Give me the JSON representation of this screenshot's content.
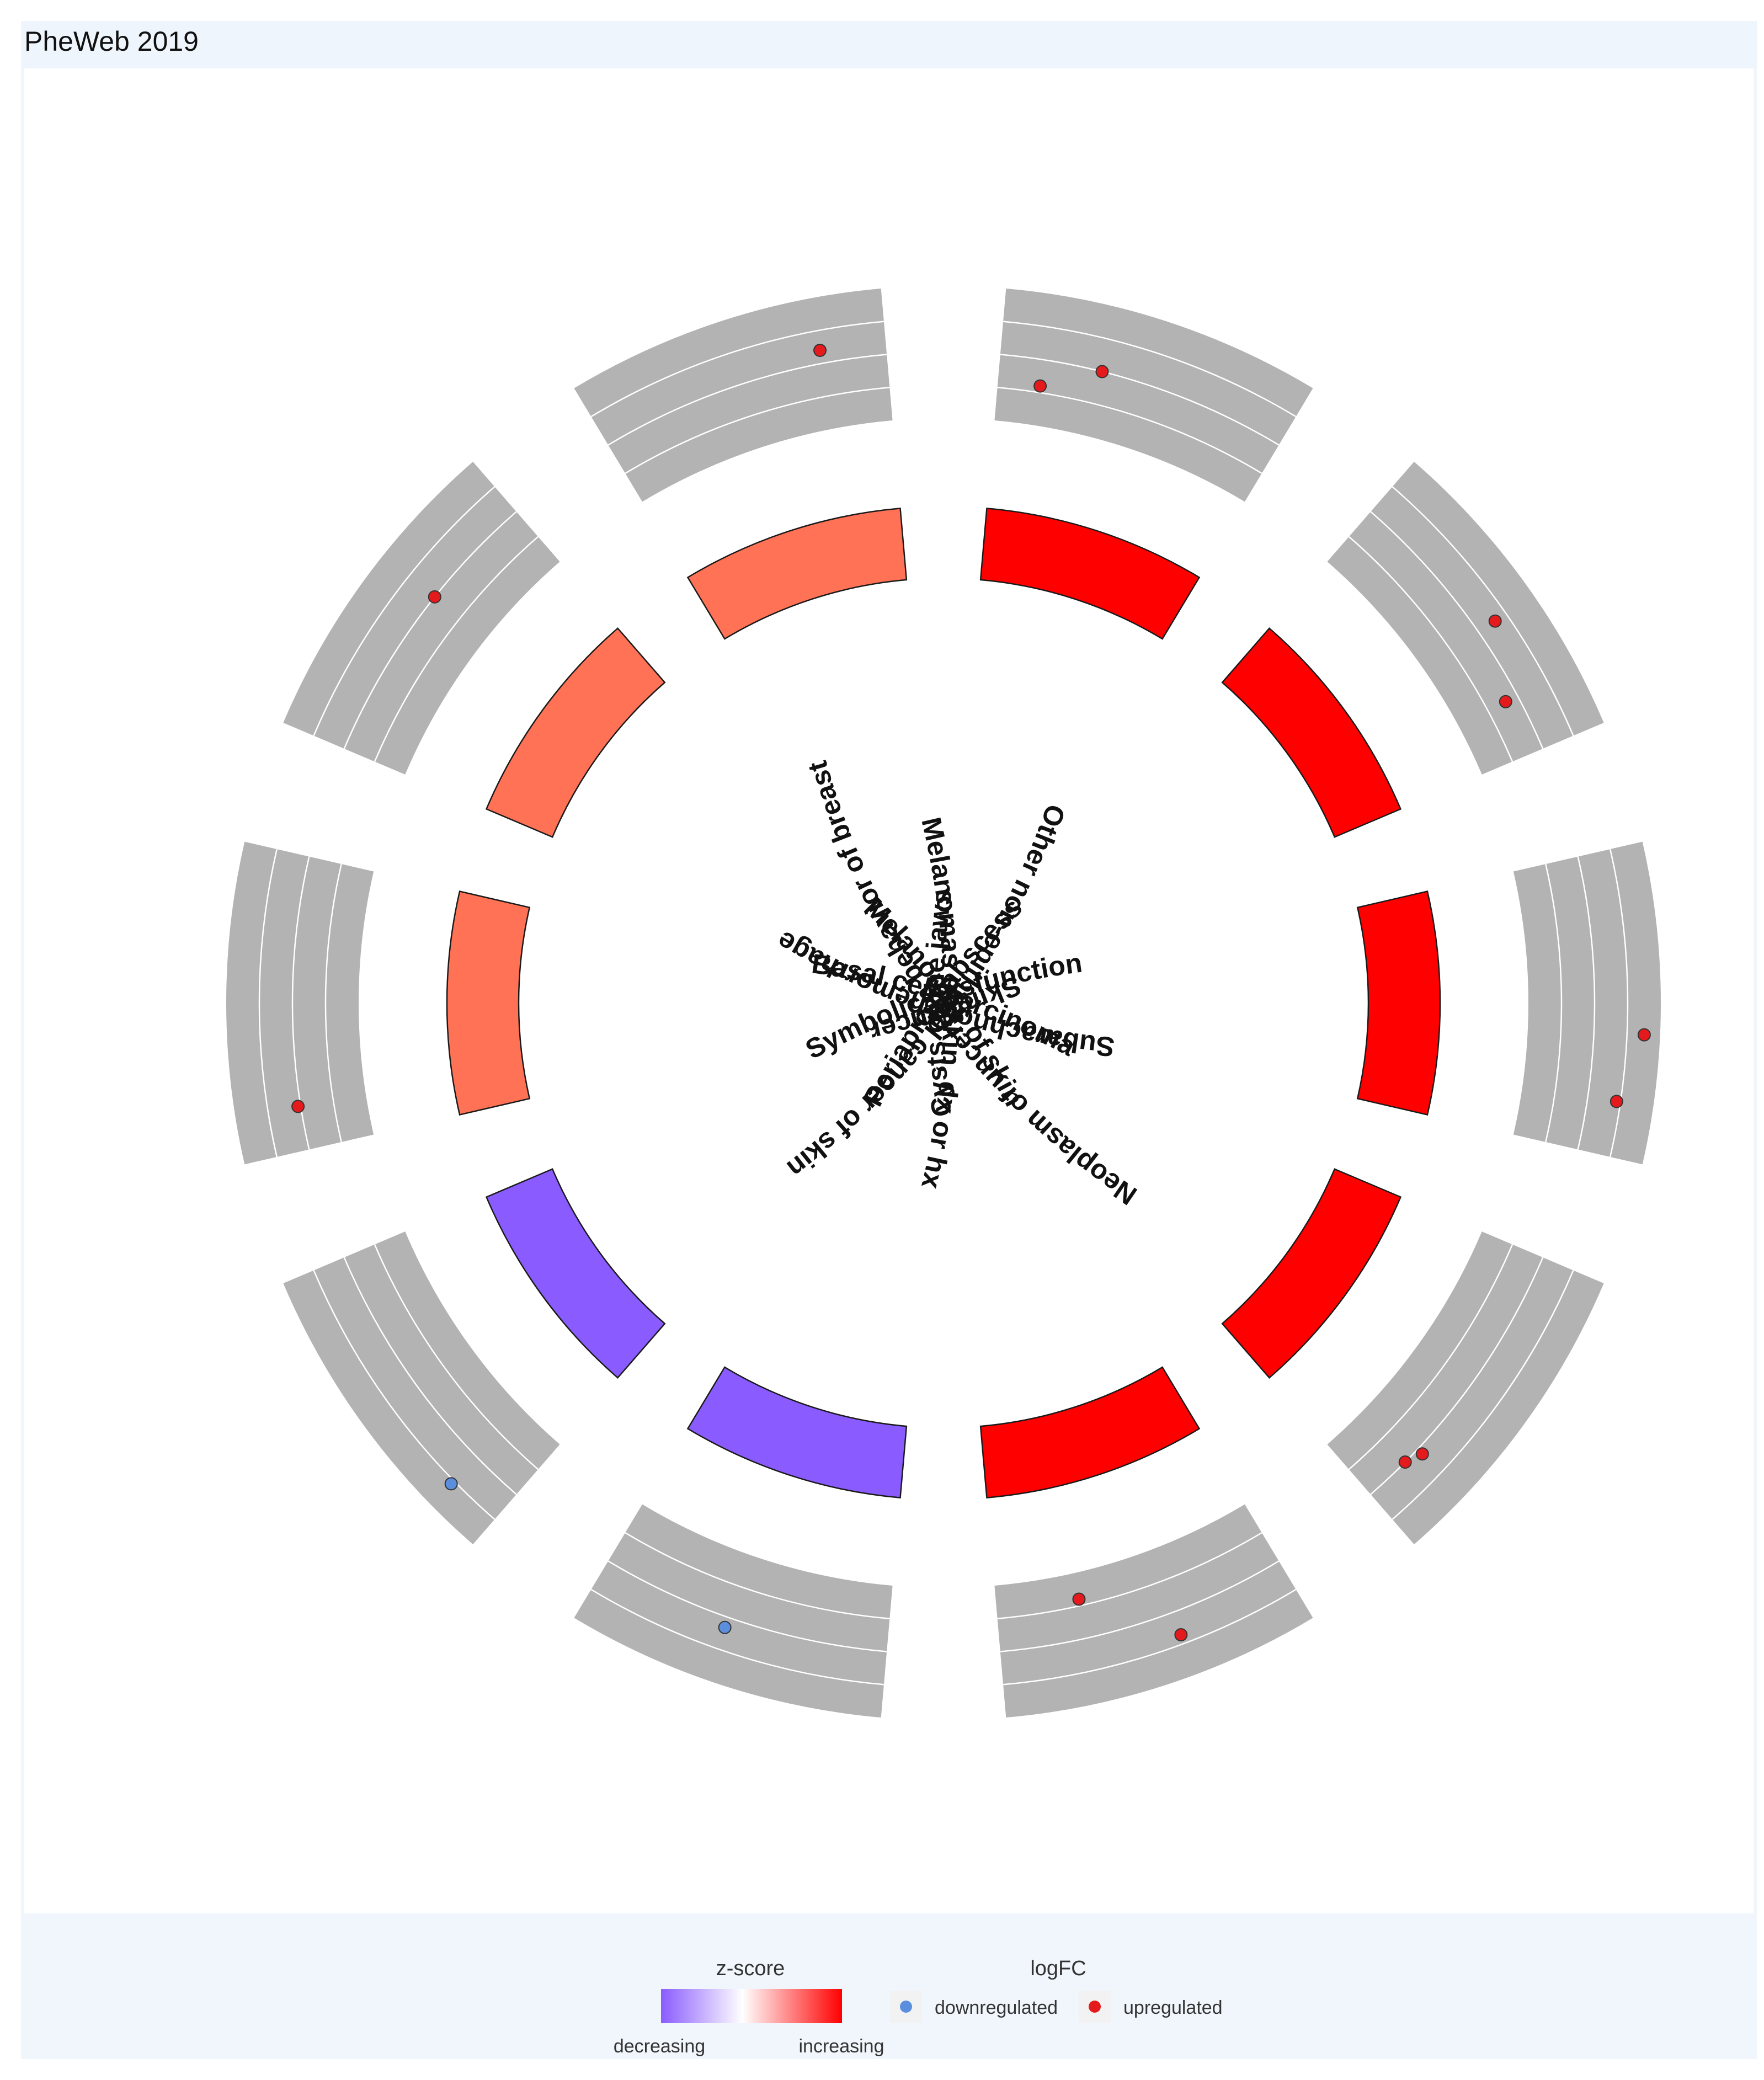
{
  "page": {
    "title": "PheWeb 2019"
  },
  "chart_data": {
    "type": "circular-bar",
    "colors": {
      "increasing": "#ff0000",
      "mid": "#ff7256",
      "decreasing": "#8a5cff",
      "track": "#b3b3b3",
      "upregulated": "#e41a1c",
      "downregulated": "#5b8fdd"
    },
    "categories": [
      {
        "label": "Basal cell carcinoma",
        "zscore": 4,
        "points": [
          {
            "logfc": 0.5,
            "position": 0.35,
            "regulation": "upregulated"
          },
          {
            "logfc": 0.3,
            "position": 0.15,
            "regulation": "upregulated"
          }
        ]
      },
      {
        "label": "Melanomas of skin",
        "zscore": 4,
        "points": [
          {
            "logfc": 0.65,
            "position": 0.55,
            "regulation": "upregulated"
          },
          {
            "logfc": 0.4,
            "position": 0.8,
            "regulation": "upregulated"
          }
        ]
      },
      {
        "label": "Melanomas of skin, dx or hx",
        "zscore": 4,
        "points": [
          {
            "logfc": 0.88,
            "position": 0.6,
            "regulation": "upregulated"
          },
          {
            "logfc": 0.72,
            "position": 0.82,
            "regulation": "upregulated"
          }
        ]
      },
      {
        "label": "Other non-epithelial cancer of skin",
        "zscore": 4,
        "points": [
          {
            "logfc": 0.55,
            "position": 0.78,
            "regulation": "upregulated"
          },
          {
            "logfc": 0.5,
            "position": 0.84,
            "regulation": "upregulated"
          }
        ]
      },
      {
        "label": "Skin cancer",
        "zscore": 4,
        "points": [
          {
            "logfc": 0.68,
            "position": 0.4,
            "regulation": "upregulated"
          },
          {
            "logfc": 0.2,
            "position": 0.7,
            "regulation": "upregulated"
          }
        ]
      },
      {
        "label": "Subarachnoid hemorrhage",
        "zscore": -3,
        "points": [
          {
            "logfc": 0.58,
            "position": 0.55,
            "regulation": "downregulated"
          }
        ]
      },
      {
        "label": "Neoplasm of uncertain behavior of breast",
        "zscore": -3,
        "points": [
          {
            "logfc": 0.78,
            "position": 0.18,
            "regulation": "downregulated"
          }
        ]
      },
      {
        "label": "Cysts of the jaws",
        "zscore": 2,
        "points": [
          {
            "logfc": 0.52,
            "position": 0.15,
            "regulation": "upregulated"
          }
        ]
      },
      {
        "label": "Periapical abscess",
        "zscore": 2,
        "points": [
          {
            "logfc": 0.5,
            "position": 0.6,
            "regulation": "upregulated"
          }
        ]
      },
      {
        "label": "Symbolic dysfunction",
        "zscore": 2,
        "points": [
          {
            "logfc": 0.6,
            "position": 0.78,
            "regulation": "upregulated"
          }
        ]
      }
    ],
    "legend": {
      "zscore_title": "z-score",
      "zscore_low": "decreasing",
      "zscore_high": "increasing",
      "logfc_title": "logFC",
      "logfc_items": [
        "downregulated",
        "upregulated"
      ]
    }
  }
}
